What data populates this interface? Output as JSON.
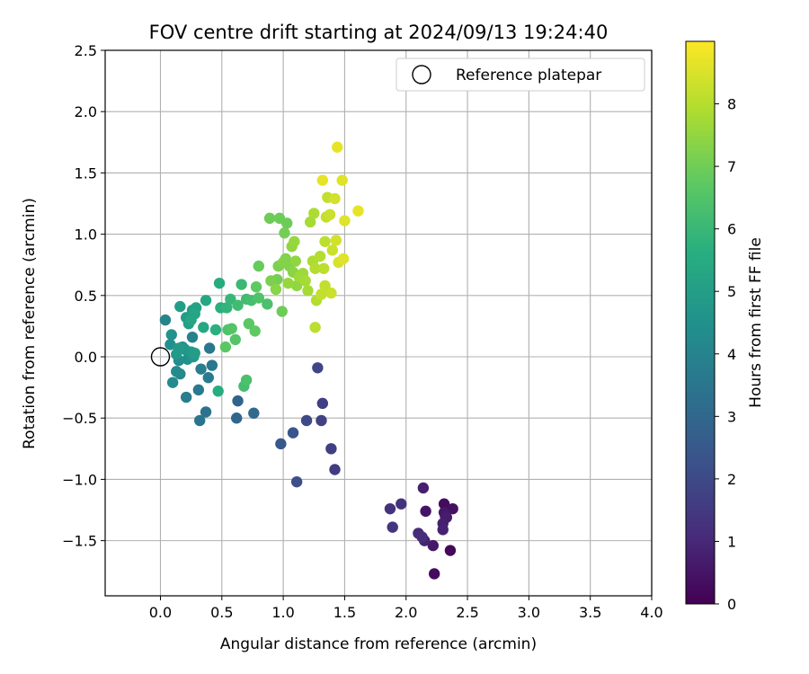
{
  "chart_data": {
    "type": "scatter",
    "title": "FOV centre drift starting at 2024/09/13 19:24:40",
    "xlabel": "Angular distance from reference (arcmin)",
    "ylabel": "Rotation from reference (arcmin)",
    "xlim": [
      -0.45,
      4.0
    ],
    "ylim": [
      -1.95,
      2.5
    ],
    "x_ticks": [
      "0.0",
      "0.5",
      "1.0",
      "1.5",
      "2.0",
      "2.5",
      "3.0",
      "3.5",
      "4.0"
    ],
    "x_tick_values": [
      0,
      0.5,
      1.0,
      1.5,
      2.0,
      2.5,
      3.0,
      3.5,
      4.0
    ],
    "y_ticks": [
      "−1.5",
      "−1.0",
      "−0.5",
      "0.0",
      "0.5",
      "1.0",
      "1.5",
      "2.0",
      "2.5"
    ],
    "y_tick_values": [
      -1.5,
      -1.0,
      -0.5,
      0,
      0.5,
      1.0,
      1.5,
      2.0,
      2.5
    ],
    "grid": true,
    "legend": {
      "position": "top-right",
      "entries": [
        "Reference platepar"
      ]
    },
    "reference_point": {
      "x": 0.0,
      "y": 0.0
    },
    "colorbar": {
      "label": "Hours from first FF file",
      "range": [
        0,
        9
      ],
      "ticks": [
        "0",
        "1",
        "2",
        "3",
        "4",
        "5",
        "6",
        "7",
        "8"
      ],
      "tick_values": [
        0,
        1,
        2,
        3,
        4,
        5,
        6,
        7,
        8
      ],
      "colormap": "viridis"
    },
    "points": [
      {
        "x": 2.36,
        "y": -1.58,
        "c": 0.2
      },
      {
        "x": 2.23,
        "y": -1.77,
        "c": 0.3
      },
      {
        "x": 2.31,
        "y": -1.2,
        "c": 0.3
      },
      {
        "x": 2.38,
        "y": -1.24,
        "c": 0.4
      },
      {
        "x": 2.16,
        "y": -1.26,
        "c": 0.5
      },
      {
        "x": 2.31,
        "y": -1.27,
        "c": 0.6
      },
      {
        "x": 2.32,
        "y": -1.3,
        "c": 0.6
      },
      {
        "x": 2.33,
        "y": -1.31,
        "c": 0.7
      },
      {
        "x": 2.22,
        "y": -1.54,
        "c": 0.6
      },
      {
        "x": 2.14,
        "y": -1.07,
        "c": 0.8
      },
      {
        "x": 2.3,
        "y": -1.36,
        "c": 0.8
      },
      {
        "x": 2.3,
        "y": -1.41,
        "c": 0.9
      },
      {
        "x": 2.15,
        "y": -1.5,
        "c": 0.9
      },
      {
        "x": 2.1,
        "y": -1.44,
        "c": 1.1
      },
      {
        "x": 2.13,
        "y": -1.47,
        "c": 1.2
      },
      {
        "x": 1.96,
        "y": -1.2,
        "c": 1.3
      },
      {
        "x": 1.87,
        "y": -1.24,
        "c": 1.3
      },
      {
        "x": 1.89,
        "y": -1.39,
        "c": 1.4
      },
      {
        "x": 1.42,
        "y": -0.92,
        "c": 1.6
      },
      {
        "x": 1.39,
        "y": -0.75,
        "c": 1.7
      },
      {
        "x": 1.32,
        "y": -0.38,
        "c": 1.7
      },
      {
        "x": 1.31,
        "y": -0.52,
        "c": 1.8
      },
      {
        "x": 1.28,
        "y": -0.09,
        "c": 1.9
      },
      {
        "x": 1.19,
        "y": -0.52,
        "c": 2.0
      },
      {
        "x": 1.11,
        "y": -1.02,
        "c": 2.2
      },
      {
        "x": 1.08,
        "y": -0.62,
        "c": 2.4
      },
      {
        "x": 0.98,
        "y": -0.71,
        "c": 2.5
      },
      {
        "x": 0.63,
        "y": -0.36,
        "c": 2.9
      },
      {
        "x": 0.62,
        "y": -0.5,
        "c": 3.0
      },
      {
        "x": 0.76,
        "y": -0.46,
        "c": 3.1
      },
      {
        "x": 0.37,
        "y": -0.45,
        "c": 3.4
      },
      {
        "x": 0.32,
        "y": -0.52,
        "c": 3.5
      },
      {
        "x": 0.42,
        "y": -0.07,
        "c": 3.6
      },
      {
        "x": 0.4,
        "y": 0.07,
        "c": 3.6
      },
      {
        "x": 0.31,
        "y": -0.27,
        "c": 3.7
      },
      {
        "x": 0.39,
        "y": -0.17,
        "c": 3.7
      },
      {
        "x": 0.21,
        "y": -0.33,
        "c": 3.8
      },
      {
        "x": 0.33,
        "y": -0.1,
        "c": 3.9
      },
      {
        "x": 0.26,
        "y": 0.16,
        "c": 4.0
      },
      {
        "x": 0.04,
        "y": 0.3,
        "c": 4.1
      },
      {
        "x": 0.16,
        "y": -0.14,
        "c": 4.2
      },
      {
        "x": 0.13,
        "y": -0.12,
        "c": 4.3
      },
      {
        "x": 0.1,
        "y": -0.21,
        "c": 4.3
      },
      {
        "x": 0.15,
        "y": -0.03,
        "c": 4.4
      },
      {
        "x": 0.22,
        "y": -0.02,
        "c": 4.5
      },
      {
        "x": 0.08,
        "y": 0.1,
        "c": 4.5
      },
      {
        "x": 0.09,
        "y": 0.18,
        "c": 4.6
      },
      {
        "x": 0.18,
        "y": 0.08,
        "c": 4.6
      },
      {
        "x": 0.2,
        "y": 0.06,
        "c": 4.7
      },
      {
        "x": 0.25,
        "y": 0.04,
        "c": 4.8
      },
      {
        "x": 0.27,
        "y": 0.0,
        "c": 4.8
      },
      {
        "x": 0.13,
        "y": 0.02,
        "c": 4.9
      },
      {
        "x": 0.15,
        "y": 0.07,
        "c": 4.9
      },
      {
        "x": 0.28,
        "y": 0.03,
        "c": 5.0
      },
      {
        "x": 0.16,
        "y": 0.41,
        "c": 5.0
      },
      {
        "x": 0.21,
        "y": 0.32,
        "c": 5.0
      },
      {
        "x": 0.23,
        "y": 0.27,
        "c": 5.1
      },
      {
        "x": 0.26,
        "y": 0.38,
        "c": 5.1
      },
      {
        "x": 0.29,
        "y": 0.4,
        "c": 5.2
      },
      {
        "x": 0.28,
        "y": 0.35,
        "c": 5.3
      },
      {
        "x": 0.25,
        "y": 0.3,
        "c": 5.3
      },
      {
        "x": 0.37,
        "y": 0.46,
        "c": 5.4
      },
      {
        "x": 0.35,
        "y": 0.24,
        "c": 5.4
      },
      {
        "x": 0.48,
        "y": 0.6,
        "c": 5.6
      },
      {
        "x": 0.47,
        "y": -0.28,
        "c": 5.6
      },
      {
        "x": 0.45,
        "y": 0.22,
        "c": 5.7
      },
      {
        "x": 0.49,
        "y": 0.4,
        "c": 5.7
      },
      {
        "x": 0.54,
        "y": 0.4,
        "c": 5.9
      },
      {
        "x": 0.57,
        "y": 0.47,
        "c": 6.0
      },
      {
        "x": 0.66,
        "y": 0.59,
        "c": 6.1
      },
      {
        "x": 0.63,
        "y": 0.42,
        "c": 6.2
      },
      {
        "x": 0.7,
        "y": 0.47,
        "c": 6.2
      },
      {
        "x": 0.74,
        "y": 0.46,
        "c": 6.3
      },
      {
        "x": 0.68,
        "y": -0.24,
        "c": 6.3
      },
      {
        "x": 0.7,
        "y": -0.19,
        "c": 6.4
      },
      {
        "x": 0.87,
        "y": 0.43,
        "c": 6.4
      },
      {
        "x": 0.8,
        "y": 0.48,
        "c": 6.5
      },
      {
        "x": 0.55,
        "y": 0.22,
        "c": 6.5
      },
      {
        "x": 0.61,
        "y": 0.14,
        "c": 6.6
      },
      {
        "x": 0.58,
        "y": 0.23,
        "c": 6.6
      },
      {
        "x": 0.53,
        "y": 0.08,
        "c": 6.7
      },
      {
        "x": 0.72,
        "y": 0.27,
        "c": 6.7
      },
      {
        "x": 0.77,
        "y": 0.21,
        "c": 6.8
      },
      {
        "x": 0.78,
        "y": 0.57,
        "c": 6.8
      },
      {
        "x": 0.8,
        "y": 0.74,
        "c": 6.9
      },
      {
        "x": 0.89,
        "y": 1.13,
        "c": 7.0
      },
      {
        "x": 0.97,
        "y": 1.13,
        "c": 7.0
      },
      {
        "x": 0.99,
        "y": 0.37,
        "c": 7.0
      },
      {
        "x": 1.03,
        "y": 1.09,
        "c": 7.0
      },
      {
        "x": 1.01,
        "y": 1.01,
        "c": 7.1
      },
      {
        "x": 0.95,
        "y": 0.63,
        "c": 7.1
      },
      {
        "x": 0.9,
        "y": 0.62,
        "c": 7.2
      },
      {
        "x": 0.96,
        "y": 0.74,
        "c": 7.2
      },
      {
        "x": 1.0,
        "y": 0.77,
        "c": 7.3
      },
      {
        "x": 1.02,
        "y": 0.8,
        "c": 7.3
      },
      {
        "x": 1.05,
        "y": 0.74,
        "c": 7.3
      },
      {
        "x": 0.94,
        "y": 0.55,
        "c": 7.4
      },
      {
        "x": 1.08,
        "y": 0.69,
        "c": 7.4
      },
      {
        "x": 1.1,
        "y": 0.78,
        "c": 7.5
      },
      {
        "x": 1.11,
        "y": 0.58,
        "c": 7.5
      },
      {
        "x": 1.07,
        "y": 0.9,
        "c": 7.5
      },
      {
        "x": 1.09,
        "y": 0.94,
        "c": 7.6
      },
      {
        "x": 1.04,
        "y": 0.6,
        "c": 7.6
      },
      {
        "x": 1.13,
        "y": 0.65,
        "c": 7.7
      },
      {
        "x": 1.16,
        "y": 0.68,
        "c": 7.7
      },
      {
        "x": 1.18,
        "y": 0.62,
        "c": 7.8
      },
      {
        "x": 1.2,
        "y": 0.54,
        "c": 7.8
      },
      {
        "x": 1.22,
        "y": 1.1,
        "c": 7.8
      },
      {
        "x": 1.25,
        "y": 1.17,
        "c": 7.9
      },
      {
        "x": 1.24,
        "y": 0.78,
        "c": 7.9
      },
      {
        "x": 1.26,
        "y": 0.72,
        "c": 8.0
      },
      {
        "x": 1.27,
        "y": 0.46,
        "c": 8.0
      },
      {
        "x": 1.3,
        "y": 0.82,
        "c": 8.0
      },
      {
        "x": 1.33,
        "y": 0.72,
        "c": 8.1
      },
      {
        "x": 1.34,
        "y": 0.94,
        "c": 8.1
      },
      {
        "x": 1.35,
        "y": 1.14,
        "c": 8.2
      },
      {
        "x": 1.36,
        "y": 1.3,
        "c": 8.2
      },
      {
        "x": 1.38,
        "y": 1.16,
        "c": 8.3
      },
      {
        "x": 1.39,
        "y": 0.52,
        "c": 8.3
      },
      {
        "x": 1.4,
        "y": 0.87,
        "c": 8.3
      },
      {
        "x": 1.42,
        "y": 1.29,
        "c": 8.4
      },
      {
        "x": 1.43,
        "y": 0.95,
        "c": 8.4
      },
      {
        "x": 1.45,
        "y": 0.77,
        "c": 8.5
      },
      {
        "x": 1.48,
        "y": 1.44,
        "c": 8.6
      },
      {
        "x": 1.49,
        "y": 0.8,
        "c": 8.6
      },
      {
        "x": 1.5,
        "y": 1.11,
        "c": 8.6
      },
      {
        "x": 1.32,
        "y": 1.44,
        "c": 8.7
      },
      {
        "x": 1.44,
        "y": 1.71,
        "c": 8.7
      },
      {
        "x": 1.61,
        "y": 1.19,
        "c": 8.7
      },
      {
        "x": 1.26,
        "y": 0.24,
        "c": 8.1
      },
      {
        "x": 1.34,
        "y": 0.58,
        "c": 8.2
      },
      {
        "x": 1.31,
        "y": 0.51,
        "c": 8.2
      }
    ]
  }
}
